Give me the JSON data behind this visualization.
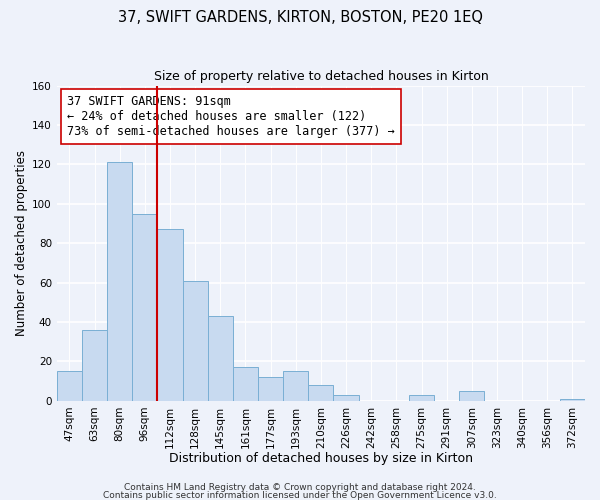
{
  "title": "37, SWIFT GARDENS, KIRTON, BOSTON, PE20 1EQ",
  "subtitle": "Size of property relative to detached houses in Kirton",
  "xlabel": "Distribution of detached houses by size in Kirton",
  "ylabel": "Number of detached properties",
  "bar_labels": [
    "47sqm",
    "63sqm",
    "80sqm",
    "96sqm",
    "112sqm",
    "128sqm",
    "145sqm",
    "161sqm",
    "177sqm",
    "193sqm",
    "210sqm",
    "226sqm",
    "242sqm",
    "258sqm",
    "275sqm",
    "291sqm",
    "307sqm",
    "323sqm",
    "340sqm",
    "356sqm",
    "372sqm"
  ],
  "bar_values": [
    15,
    36,
    121,
    95,
    87,
    61,
    43,
    17,
    12,
    15,
    8,
    3,
    0,
    0,
    3,
    0,
    5,
    0,
    0,
    0,
    1
  ],
  "bar_color": "#c8daf0",
  "bar_edge_color": "#7aafd4",
  "vline_bar_index": 3,
  "vline_color": "#cc0000",
  "annotation_line1": "37 SWIFT GARDENS: 91sqm",
  "annotation_line2": "← 24% of detached houses are smaller (122)",
  "annotation_line3": "73% of semi-detached houses are larger (377) →",
  "annotation_box_color": "#ffffff",
  "annotation_box_edge": "#cc0000",
  "ylim": [
    0,
    160
  ],
  "yticks": [
    0,
    20,
    40,
    60,
    80,
    100,
    120,
    140,
    160
  ],
  "footer1": "Contains HM Land Registry data © Crown copyright and database right 2024.",
  "footer2": "Contains public sector information licensed under the Open Government Licence v3.0.",
  "bg_color": "#eef2fa",
  "plot_bg_color": "#eef2fa",
  "grid_color": "#ffffff",
  "title_fontsize": 10.5,
  "subtitle_fontsize": 9,
  "xlabel_fontsize": 9,
  "ylabel_fontsize": 8.5,
  "tick_fontsize": 7.5,
  "annotation_fontsize": 8.5,
  "footer_fontsize": 6.5
}
